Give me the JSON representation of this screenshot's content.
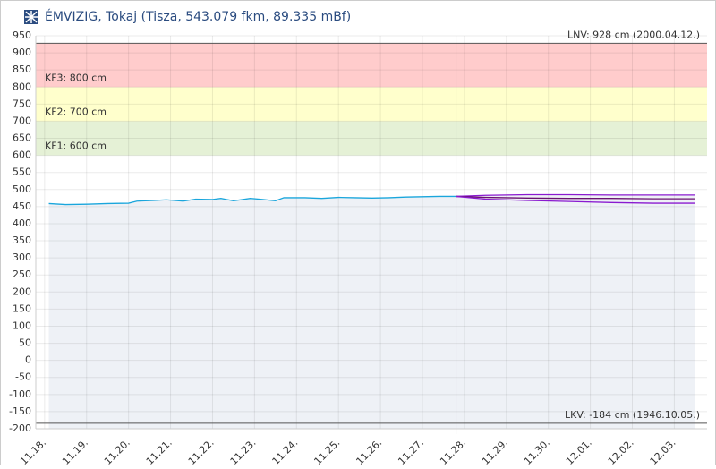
{
  "chart_data": {
    "type": "line",
    "title": "ÉMVIZIG, Tokaj (Tisza, 543.079 fkm, 89.335 mBf)",
    "xlim": [
      17.79,
      33.78
    ],
    "ylim": [
      -200,
      950
    ],
    "yticks": [
      -200,
      -150,
      -100,
      -50,
      0,
      50,
      100,
      150,
      200,
      250,
      300,
      350,
      400,
      450,
      500,
      550,
      600,
      650,
      700,
      750,
      800,
      850,
      900,
      950
    ],
    "xticks": [
      {
        "value": 18,
        "label": "11.18."
      },
      {
        "value": 19,
        "label": "11.19."
      },
      {
        "value": 20,
        "label": "11.20."
      },
      {
        "value": 21,
        "label": "11.21."
      },
      {
        "value": 22,
        "label": "11.22."
      },
      {
        "value": 23,
        "label": "11.23."
      },
      {
        "value": 24,
        "label": "11.24."
      },
      {
        "value": 25,
        "label": "11.25."
      },
      {
        "value": 26,
        "label": "11.26."
      },
      {
        "value": 27,
        "label": "11.27."
      },
      {
        "value": 28,
        "label": "11.28."
      },
      {
        "value": 29,
        "label": "11.29."
      },
      {
        "value": 30,
        "label": "11.30."
      },
      {
        "value": 31,
        "label": "12.01."
      },
      {
        "value": 32,
        "label": "12.02."
      },
      {
        "value": 33,
        "label": "12.03."
      }
    ],
    "grid": true,
    "now": 27.8,
    "record_high": {
      "label": "LNV: 928 cm (2000.04.12.)",
      "value": 928
    },
    "record_low": {
      "label": "LKV: -184 cm (1946.10.05.)",
      "value": -184
    },
    "thresholds": [
      {
        "label": "KF1: 600 cm",
        "value": 600,
        "color": "#e5f1d6"
      },
      {
        "label": "KF2: 700 cm",
        "value": 700,
        "color": "#ffffcc"
      },
      {
        "label": "KF3: 800 cm",
        "value": 800,
        "color": "#ffcccc"
      }
    ],
    "series": [
      {
        "color": "#1aa6dc",
        "fill": "#eef1f6",
        "x": [
          18.1,
          18.5,
          19,
          19.5,
          20,
          20.2,
          20.6,
          20.9,
          21.3,
          21.6,
          22,
          22.2,
          22.5,
          22.9,
          23.2,
          23.5,
          23.7,
          24.2,
          24.6,
          25,
          25.4,
          25.8,
          26.2,
          26.6,
          27,
          27.4,
          27.8
        ],
        "values": [
          459,
          456,
          457,
          459,
          460,
          466,
          468,
          470,
          466,
          472,
          471,
          474,
          467,
          474,
          471,
          467,
          476,
          476,
          474,
          477,
          476,
          475,
          476,
          478,
          479,
          480,
          480
        ]
      },
      {
        "color": "#8a1ad0",
        "fill": "#eef1f6",
        "x": [
          27.8,
          28.5,
          29.5,
          30.5,
          31.5,
          32.5,
          33.5
        ],
        "values": [
          480,
          483,
          485,
          485,
          484,
          484,
          484
        ]
      },
      {
        "color": "#6a1070",
        "x": [
          27.8,
          28.5,
          29.5,
          30.5,
          31.5,
          32.5,
          33.5
        ],
        "values": [
          480,
          477,
          475,
          474,
          474,
          473,
          473
        ]
      },
      {
        "color": "#8a1ad0",
        "x": [
          27.8,
          28.5,
          29.5,
          30.5,
          31.5,
          32.5,
          33.5
        ],
        "values": [
          480,
          472,
          468,
          465,
          462,
          460,
          460
        ]
      }
    ]
  }
}
